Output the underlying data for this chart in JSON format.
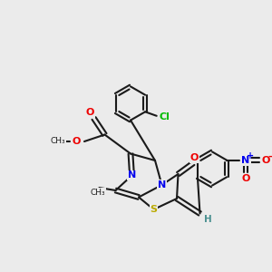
{
  "bg_color": "#ebebeb",
  "bond_color": "#1a1a1a",
  "atom_colors": {
    "C": "#1a1a1a",
    "N": "#0000ee",
    "O": "#ee0000",
    "S": "#bbaa00",
    "Cl": "#00bb00",
    "H": "#4a9090"
  },
  "figsize": [
    3.0,
    3.0
  ],
  "dpi": 100
}
